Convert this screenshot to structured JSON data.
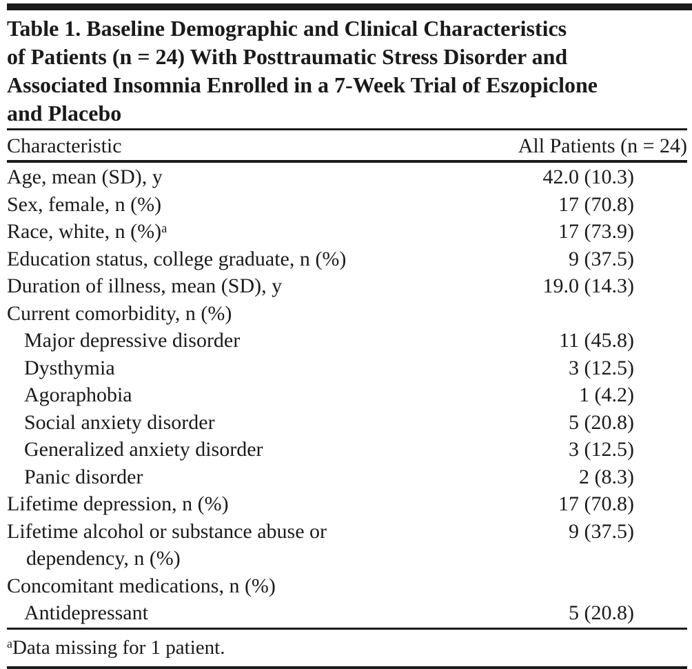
{
  "colors": {
    "ink": "#1a1a1a",
    "background": "#ffffff"
  },
  "title_lines": [
    "Table 1. Baseline Demographic and Clinical Characteristics",
    "of Patients (n = 24) With Posttraumatic Stress Disorder and",
    "Associated Insomnia Enrolled in a 7-Week Trial of Eszopiclone",
    "and Placebo"
  ],
  "table": {
    "columns": [
      "Characteristic",
      "All Patients (n = 24)"
    ],
    "rows": [
      {
        "label": "Age, mean (SD), y",
        "value": "42.0 (10.3)",
        "indent": 0
      },
      {
        "label": "Sex, female, n (%)",
        "value": "17 (70.8)",
        "indent": 0
      },
      {
        "label": "Race, white, n (%)",
        "sup": "a",
        "value": "17 (73.9)",
        "indent": 0
      },
      {
        "label": "Education status, college graduate, n (%)",
        "value": "9 (37.5)",
        "indent": 0
      },
      {
        "label": "Duration of illness, mean (SD), y",
        "value": "19.0 (14.3)",
        "indent": 0
      },
      {
        "label": "Current comorbidity, n (%)",
        "indent": 0
      },
      {
        "label": "Major depressive disorder",
        "value": "11 (45.8)",
        "indent": 1
      },
      {
        "label": "Dysthymia",
        "value": "3 (12.5)",
        "indent": 1
      },
      {
        "label": "Agoraphobia",
        "value": "1 (4.2)",
        "indent": 1
      },
      {
        "label": "Social anxiety disorder",
        "value": "5 (20.8)",
        "indent": 1
      },
      {
        "label": "Generalized anxiety disorder",
        "value": "3 (12.5)",
        "indent": 1
      },
      {
        "label": "Panic disorder",
        "value": "2 (8.3)",
        "indent": 1
      },
      {
        "label": "Lifetime depression, n (%)",
        "value": "17 (70.8)",
        "indent": 0
      },
      {
        "label": "Lifetime alcohol or substance abuse or",
        "label2": "dependency, n (%)",
        "value": "9 (37.5)",
        "indent": 0
      },
      {
        "label": "Concomitant medications, n (%)",
        "indent": 0
      },
      {
        "label": "Antidepressant",
        "value": "5 (20.8)",
        "indent": 1
      }
    ]
  },
  "footnote": {
    "marker": "a",
    "text": "Data missing for 1 patient."
  }
}
